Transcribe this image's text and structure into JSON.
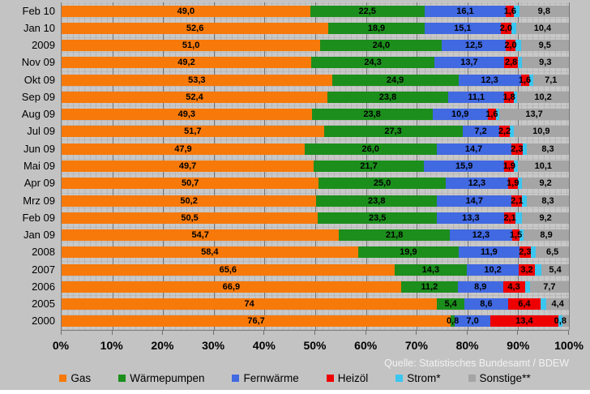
{
  "chart_data": {
    "type": "bar",
    "orientation": "horizontal",
    "stacked": true,
    "unit": "percent",
    "xlim": [
      0,
      100
    ],
    "x_ticks": [
      "0%",
      "10%",
      "20%",
      "30%",
      "40%",
      "50%",
      "60%",
      "70%",
      "80%",
      "90%",
      "100%"
    ],
    "grid": true,
    "legend_position": "bottom",
    "background": "#C3C3C3",
    "source": "Quelle: Statistisches Bundesamt / BDEW",
    "categories": [
      "Feb 10",
      "Jan 10",
      "2009",
      "Nov 09",
      "Okt 09",
      "Sep 09",
      "Aug 09",
      "Jul 09",
      "Jun 09",
      "Mai 09",
      "Apr 09",
      "Mrz 09",
      "Feb 09",
      "Jan 09",
      "2008",
      "2007",
      "2006",
      "2005",
      "2000"
    ],
    "series": [
      {
        "name": "Gas",
        "color": "#F7790A",
        "values": [
          49.0,
          52.6,
          51.0,
          49.2,
          53.3,
          52.4,
          49.3,
          51.7,
          47.9,
          49.7,
          50.7,
          50.2,
          50.5,
          54.7,
          58.4,
          65.6,
          66.9,
          74,
          76.7
        ],
        "labels": [
          "49,0",
          "52,6",
          "51,0",
          "49,2",
          "53,3",
          "52,4",
          "49,3",
          "51,7",
          "47,9",
          "49,7",
          "50,7",
          "50,2",
          "50,5",
          "54,7",
          "58,4",
          "65,6",
          "66,9",
          "74",
          "76,7"
        ]
      },
      {
        "name": "Wärmepumpen",
        "color": "#1C8E1C",
        "values": [
          22.5,
          18.9,
          24.0,
          24.3,
          24.9,
          23.8,
          23.8,
          27.3,
          26.0,
          21.7,
          25.0,
          23.8,
          23.5,
          21.8,
          19.9,
          14.3,
          11.2,
          5.4,
          0.8
        ],
        "labels": [
          "22,5",
          "18,9",
          "24,0",
          "24,3",
          "24,9",
          "23,8",
          "23,8",
          "27,3",
          "26,0",
          "21,7",
          "25,0",
          "23,8",
          "23,5",
          "21,8",
          "19,9",
          "14,3",
          "11,2",
          "5,4",
          "0,8"
        ]
      },
      {
        "name": "Fernwärme",
        "color": "#4169E1",
        "values": [
          16.1,
          15.1,
          12.5,
          13.7,
          12.3,
          11.1,
          10.9,
          7.2,
          14.7,
          15.9,
          12.3,
          14.7,
          13.3,
          12.3,
          11.9,
          10.2,
          8.9,
          8.6,
          7.0
        ],
        "labels": [
          "16,1",
          "15,1",
          "12,5",
          "13,7",
          "12,3",
          "11,1",
          "10,9",
          "7,2",
          "14,7",
          "15,9",
          "12,3",
          "14,7",
          "13,3",
          "12,3",
          "11,9",
          "10,2",
          "8,9",
          "8,6",
          "7,0"
        ]
      },
      {
        "name": "Heizöl",
        "color": "#EE0000",
        "values": [
          1.6,
          2.0,
          2.0,
          2.8,
          1.6,
          1.8,
          1.6,
          2.2,
          2.3,
          1.9,
          1.9,
          2.1,
          2.1,
          1.5,
          2.3,
          3.2,
          4.3,
          6.4,
          13.4
        ],
        "labels": [
          "1,6",
          "2,0",
          "2,0",
          "2,8",
          "1,6",
          "1,8",
          "1,6",
          "2,2",
          "2,3",
          "1,9",
          "1,9",
          "2,1",
          "2,1",
          "1,5",
          "2,3",
          "3,2",
          "4,3",
          "6,4",
          "13,4"
        ]
      },
      {
        "name": "Strom*",
        "color": "#3BC6F0",
        "values": [
          1.0,
          1.0,
          1.0,
          0.7,
          0.8,
          0.7,
          0.7,
          0.7,
          0.8,
          0.7,
          0.9,
          0.9,
          1.4,
          0.8,
          1.0,
          1.3,
          1.0,
          1.2,
          0.8
        ],
        "labels": [
          null,
          null,
          null,
          null,
          null,
          null,
          null,
          null,
          null,
          null,
          null,
          null,
          null,
          null,
          null,
          null,
          null,
          null,
          "0,8"
        ]
      },
      {
        "name": "Sonstige**",
        "color": "#A5A5A5",
        "values": [
          9.8,
          10.4,
          9.5,
          9.3,
          7.1,
          10.2,
          13.7,
          10.9,
          8.3,
          10.1,
          9.2,
          8.3,
          9.2,
          8.9,
          6.5,
          5.4,
          7.7,
          4.4,
          1.3
        ],
        "labels": [
          "9,8",
          "10,4",
          "9,5",
          "9,3",
          "7,1",
          "10,2",
          "13,7",
          "10,9",
          "8,3",
          "10,1",
          "9,2",
          "8,3",
          "9,2",
          "8,9",
          "6,5",
          "5,4",
          "7,7",
          "4,4",
          null
        ]
      }
    ]
  }
}
